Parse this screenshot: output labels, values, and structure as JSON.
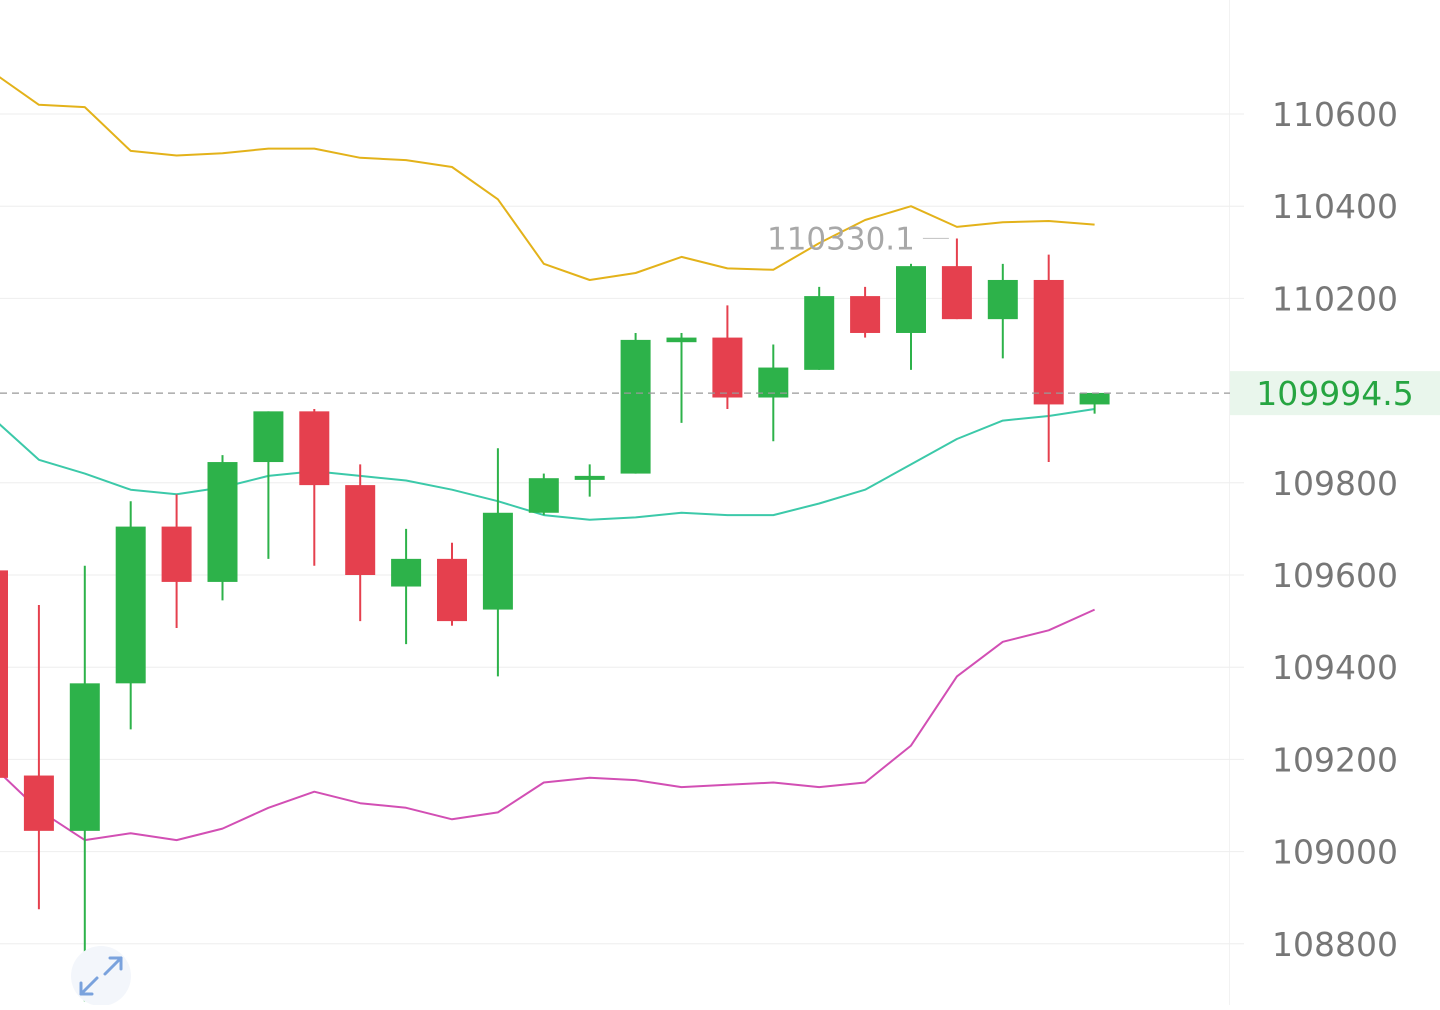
{
  "chart_data": {
    "type": "candlestick",
    "y_axis": {
      "ticks": [
        "110600",
        "110400",
        "110200",
        "109800",
        "109600",
        "109400",
        "109200",
        "109000",
        "108800"
      ],
      "tick_values": [
        110600,
        110400,
        110200,
        109800,
        109600,
        109400,
        109200,
        109000,
        108800
      ],
      "range": [
        108680,
        110850
      ],
      "grid": true
    },
    "current_price": {
      "value": 109994.5,
      "label": "109994.5",
      "color": "#26a541"
    },
    "max_marker": {
      "value": 110330.1,
      "label": "110330.1"
    },
    "colors": {
      "up": "#2db24a",
      "down": "#e5404e",
      "upper_band": "#e3b21a",
      "middle_band": "#3cc9a9",
      "lower_band": "#d24fb4",
      "grid": "#eeeeee",
      "axis_text": "#777777"
    },
    "candles": [
      {
        "o": 109610,
        "h": 109610,
        "l": 109160,
        "c": 109160
      },
      {
        "o": 109165,
        "h": 109535,
        "l": 108875,
        "c": 109045
      },
      {
        "o": 109045,
        "h": 109620,
        "l": 108675,
        "c": 109365
      },
      {
        "o": 109365,
        "h": 109760,
        "l": 109265,
        "c": 109705
      },
      {
        "o": 109705,
        "h": 109775,
        "l": 109485,
        "c": 109585
      },
      {
        "o": 109585,
        "h": 109860,
        "l": 109545,
        "c": 109845
      },
      {
        "o": 109845,
        "h": 109955,
        "l": 109635,
        "c": 109955
      },
      {
        "o": 109955,
        "h": 109960,
        "l": 109620,
        "c": 109795
      },
      {
        "o": 109795,
        "h": 109840,
        "l": 109500,
        "c": 109600
      },
      {
        "o": 109575,
        "h": 109700,
        "l": 109450,
        "c": 109635
      },
      {
        "o": 109635,
        "h": 109670,
        "l": 109490,
        "c": 109500
      },
      {
        "o": 109525,
        "h": 109875,
        "l": 109380,
        "c": 109735
      },
      {
        "o": 109735,
        "h": 109820,
        "l": 109730,
        "c": 109810
      },
      {
        "o": 109815,
        "h": 109840,
        "l": 109770,
        "c": 109815
      },
      {
        "o": 109820,
        "h": 110125,
        "l": 109820,
        "c": 110110
      },
      {
        "o": 110105,
        "h": 110125,
        "l": 109930,
        "c": 110115
      },
      {
        "o": 110115,
        "h": 110185,
        "l": 109960,
        "c": 109985
      },
      {
        "o": 109985,
        "h": 110100,
        "l": 109890,
        "c": 110050
      },
      {
        "o": 110045,
        "h": 110225,
        "l": 110045,
        "c": 110205
      },
      {
        "o": 110205,
        "h": 110225,
        "l": 110115,
        "c": 110125
      },
      {
        "o": 110125,
        "h": 110275,
        "l": 110045,
        "c": 110270
      },
      {
        "o": 110270,
        "h": 110330,
        "l": 110155,
        "c": 110155
      },
      {
        "o": 110155,
        "h": 110275,
        "l": 110070,
        "c": 110240
      },
      {
        "o": 110240,
        "h": 110295,
        "l": 109845,
        "c": 109970
      },
      {
        "o": 109970,
        "h": 109995,
        "l": 109950,
        "c": 109995
      }
    ],
    "series": [
      {
        "values": [
          110690,
          110620,
          110615,
          110520,
          110510,
          110515,
          110525,
          110525,
          110505,
          110500,
          110485,
          110415,
          110275,
          110240,
          110255,
          110290,
          110265,
          110262,
          110320,
          110370,
          110400,
          110355,
          110365,
          110368,
          110360
        ]
      },
      {
        "values": [
          109940,
          109850,
          109820,
          109785,
          109775,
          109790,
          109815,
          109825,
          109815,
          109805,
          109785,
          109760,
          109730,
          109720,
          109725,
          109735,
          109730,
          109730,
          109755,
          109785,
          109840,
          109895,
          109935,
          109945,
          109960
        ]
      },
      {
        "values": [
          109185,
          109090,
          109025,
          109040,
          109025,
          109050,
          109095,
          109130,
          109105,
          109095,
          109070,
          109085,
          109150,
          109160,
          109155,
          109140,
          109145,
          109150,
          109140,
          109150,
          109230,
          109380,
          109455,
          109480,
          109525
        ]
      }
    ]
  }
}
